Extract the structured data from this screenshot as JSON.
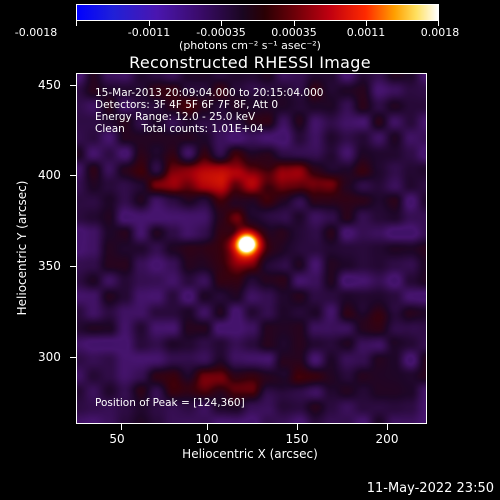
{
  "colorbar": {
    "labels": [
      "-0.0018",
      "-0.0011",
      "-0.00035",
      "0.00035",
      "0.0011",
      "0.0018"
    ],
    "units": "(photons cm⁻² s⁻¹ asec⁻²)"
  },
  "title": "Reconstructed RHESSI Image",
  "info": {
    "time_range": "15-Mar-2013 20:09:04.000 to 20:15:04.000",
    "detectors": "Detectors: 3F 4F 5F 6F 7F 8F, Att 0",
    "energy": "Energy Range: 12.0 - 25.0 keV",
    "clean": "Clean     Total counts: 1.01E+04",
    "peak": "Position of Peak = [124,360]"
  },
  "axes": {
    "xlabel": "Heliocentric X (arcsec)",
    "ylabel": "Heliocentric Y (arcsec)",
    "xticks": [
      "50",
      "100",
      "150",
      "200"
    ],
    "yticks": [
      "450",
      "400",
      "350",
      "300"
    ]
  },
  "footer": {
    "timestamp": "11-May-2022 23:50"
  },
  "colors": {
    "background": "#000000",
    "text": "#ffffff",
    "colormap": [
      "#0000ff",
      "#3a0b6a",
      "#2a0004",
      "#c00010",
      "#ff2a00",
      "#ffa000",
      "#ffffff"
    ]
  }
}
